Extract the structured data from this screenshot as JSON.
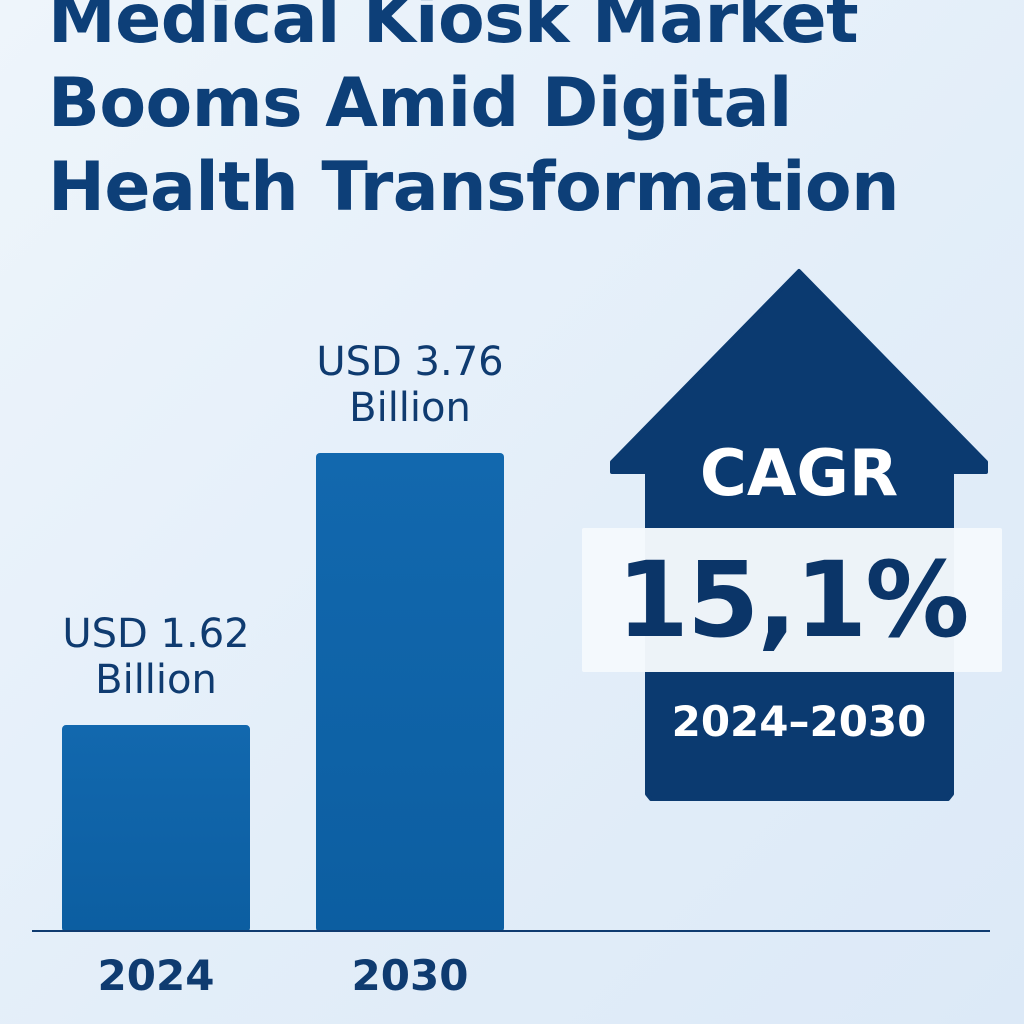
{
  "title_lines": [
    "Medical Kiosk Market",
    "Booms Amid Digital",
    "Health Transformation"
  ],
  "chart_data": {
    "type": "bar",
    "title": "Medical Kiosk Market Booms Amid Digital Health Transformation",
    "categories": [
      "2024",
      "2030"
    ],
    "values": [
      1.62,
      3.76
    ],
    "value_labels": [
      {
        "line1": "USD 1.62",
        "line2": "Billion"
      },
      {
        "line1": "USD 3.76",
        "line2": "Billion"
      }
    ],
    "xlabel": "",
    "ylabel": "",
    "grid": false,
    "legend": "none"
  },
  "cagr": {
    "label": "CAGR",
    "value": "15,1%",
    "period": "2024–2030"
  },
  "colors": {
    "title": "#0d3f78",
    "bar": "#0f63a8",
    "arrow": "#0b3a70",
    "axis": "#0f3b70"
  }
}
